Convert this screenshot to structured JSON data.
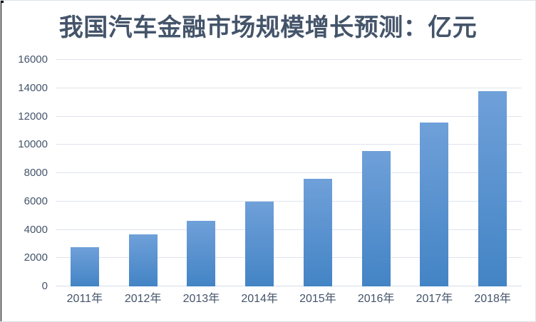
{
  "title": {
    "text": "我国汽车金融市场规模增长预测：亿元"
  },
  "colors": {
    "background": "#FFFFFF",
    "frame_border": "#DCE3EA",
    "edge_artifact": "#000000",
    "title_text": "#44546A",
    "axis_text": "#44546A",
    "gridline": "#DEE4ED",
    "axis_line": "#D5DDE8",
    "bar_gradient_top": "#6FA0D9",
    "bar_gradient_bottom": "#4384C5"
  },
  "chart_data": {
    "type": "bar",
    "title": "我国汽车金融市场规模增长预测：亿元",
    "categories": [
      "2011年",
      "2012年",
      "2013年",
      "2014年",
      "2015年",
      "2016年",
      "2017年",
      "2018年"
    ],
    "values": [
      2750,
      3650,
      4650,
      6000,
      7600,
      9550,
      11550,
      13800
    ],
    "xlabel": "",
    "ylabel": "",
    "unit": "亿元",
    "ylim": [
      0,
      16000
    ],
    "yticks": [
      0,
      2000,
      4000,
      6000,
      8000,
      10000,
      12000,
      14000,
      16000
    ],
    "grid": true,
    "legend": false
  }
}
